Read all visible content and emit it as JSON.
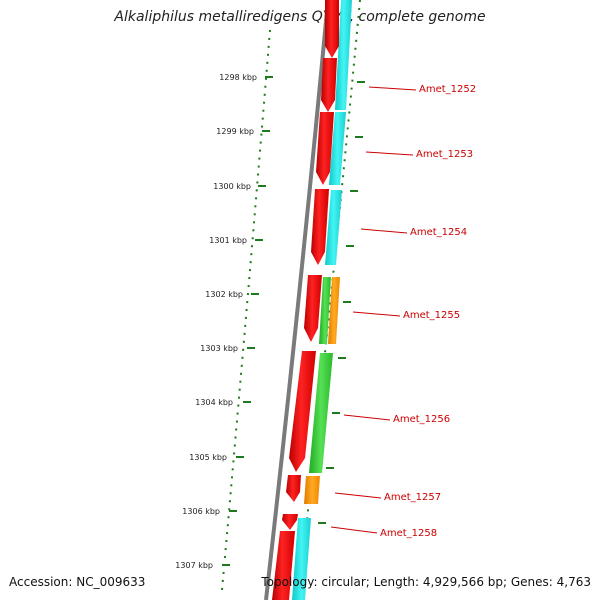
{
  "title": "Alkaliphilus metalliredigens QYMF, complete genome",
  "footer": {
    "accession": "Accession: NC_009633",
    "topology": "Topology: circular; Length: 4,929,566 bp; Genes: 4,763"
  },
  "colors": {
    "backbone": "#7a7a7a",
    "gene_red": "#ee1111",
    "cog_cyan": "#22dddd",
    "cog_green": "#33cc33",
    "cog_orange": "#ff9900",
    "tick_green": "#1d7a1d",
    "label_red": "#cc0000"
  },
  "kbp_ticks": [
    "1298 kbp",
    "1299 kbp",
    "1300 kbp",
    "1301 kbp",
    "1302 kbp",
    "1303 kbp",
    "1304 kbp",
    "1305 kbp",
    "1306 kbp",
    "1307 kbp"
  ],
  "genes": [
    {
      "label": "Amet_1252",
      "cog_color": "cyan"
    },
    {
      "label": "Amet_1253",
      "cog_color": "cyan"
    },
    {
      "label": "Amet_1254",
      "cog_color": "cyan"
    },
    {
      "label": "Amet_1255",
      "cog_color": "green+orange"
    },
    {
      "label": "Amet_1256",
      "cog_color": "green"
    },
    {
      "label": "Amet_1257",
      "cog_color": "orange"
    },
    {
      "label": "Amet_1258",
      "cog_color": "cyan"
    }
  ]
}
